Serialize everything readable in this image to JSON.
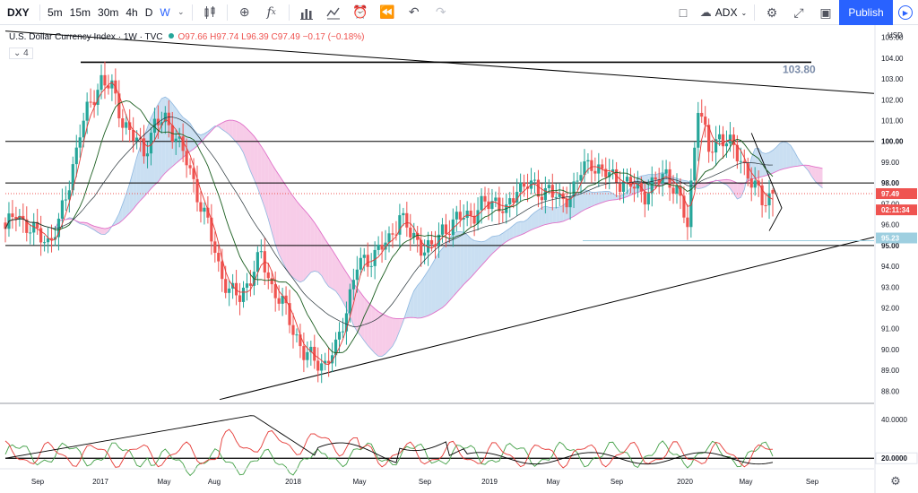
{
  "toolbar": {
    "symbol": "DXY",
    "intervals": [
      "5m",
      "15m",
      "30m",
      "4h",
      "D",
      "W"
    ],
    "active_interval": "W",
    "indicator_search": "ADX",
    "publish_label": "Publish",
    "icons": [
      "chevron-down-icon",
      "candles-icon",
      "plus-circle-icon",
      "fx-icon",
      "bar-chart-icon",
      "line-chart-icon",
      "alarm-icon",
      "rewind-icon",
      "undo-icon",
      "redo-icon",
      "square-icon",
      "cloud-icon",
      "gear-icon",
      "fullscreen-icon",
      "camera-icon",
      "play-icon"
    ]
  },
  "legend": {
    "title": "U.S. Dollar Currency Index · 1W · TVC",
    "o": "O97.66",
    "h": "H97.74",
    "l": "L96.39",
    "c": "C97.49",
    "change": "−0.17 (−0.18%)",
    "indicator_count": "4"
  },
  "colors": {
    "up": "#26a69a",
    "down": "#ef5350",
    "cloud_up": "#b8d4ee",
    "cloud_down": "#f4bbe0",
    "accent": "#2962ff"
  },
  "price_axis": {
    "currency": "USD",
    "ticks": [
      "105.00",
      "104.00",
      "103.00",
      "102.00",
      "101.00",
      "100.00",
      "99.00",
      "98.00",
      "97.00",
      "96.00",
      "95.00",
      "94.00",
      "93.00",
      "92.00",
      "91.00",
      "90.00",
      "89.00",
      "88.00"
    ],
    "current_price": "97.49",
    "countdown": "02:11:34",
    "hidden_tag": "95.23",
    "tags": [
      "100.00",
      "98.00",
      "95.00"
    ]
  },
  "annotations": {
    "resistance_label": "103.80"
  },
  "indicator_axis": {
    "ticks": [
      "40.0000",
      "20.0000"
    ]
  },
  "time_axis": [
    "Sep",
    "2017",
    "May",
    "Aug",
    "2018",
    "May",
    "Sep",
    "2019",
    "May",
    "Sep",
    "2020",
    "May",
    "Sep"
  ],
  "chart_data": {
    "type": "candlestick",
    "interval": "1W",
    "ylim": [
      87.5,
      105.5
    ],
    "levels": [
      100.0,
      98.0,
      95.0,
      103.8
    ],
    "last": {
      "open": 97.66,
      "high": 97.74,
      "low": 96.39,
      "close": 97.49
    },
    "close_path": [
      95.8,
      96.5,
      96.0,
      95.5,
      95.2,
      96.0,
      98.0,
      100.5,
      101.8,
      103.0,
      102.5,
      101.0,
      100.2,
      99.5,
      100.8,
      101.0,
      100.3,
      99.0,
      97.5,
      96.0,
      94.0,
      92.8,
      92.5,
      93.5,
      94.5,
      93.0,
      92.2,
      91.0,
      89.8,
      89.5,
      89.3,
      90.0,
      92.0,
      94.0,
      94.3,
      94.8,
      95.2,
      96.5,
      95.5,
      95.0,
      94.8,
      95.8,
      96.0,
      96.5,
      96.5,
      97.0,
      97.2,
      96.5,
      97.8,
      98.0,
      97.5,
      97.8,
      97.0,
      97.5,
      98.5,
      99.0,
      98.5,
      98.3,
      98.0,
      97.8,
      97.5,
      98.0,
      98.5,
      97.5,
      96.0,
      101.8,
      99.5,
      100.3,
      99.8,
      99.2,
      98.0,
      97.2,
      97.49
    ],
    "adx_ylim": [
      15,
      48
    ],
    "adx_ticks": [
      40,
      20
    ]
  }
}
